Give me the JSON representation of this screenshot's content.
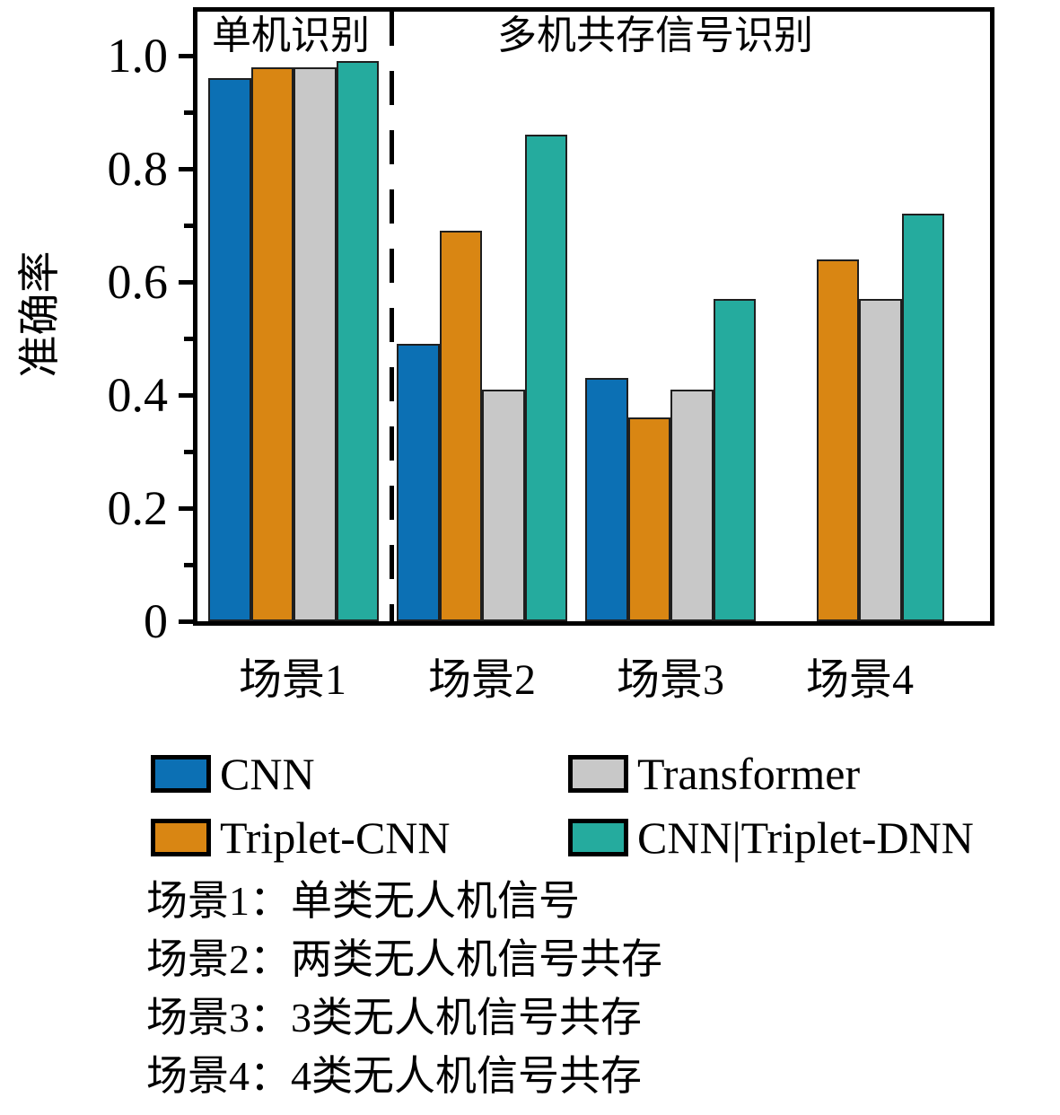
{
  "chart_data": {
    "type": "bar",
    "title": "",
    "xlabel": "",
    "ylabel": "准确率",
    "categories": [
      "场景1",
      "场景2",
      "场景3",
      "场景4"
    ],
    "series": [
      {
        "name": "CNN",
        "color": "#0c70b4",
        "values": [
          0.96,
          0.49,
          0.43,
          null
        ]
      },
      {
        "name": "Triplet-CNN",
        "color": "#d98613",
        "values": [
          0.98,
          0.69,
          0.36,
          0.64
        ]
      },
      {
        "name": "Transformer",
        "color": "#c8c8c8",
        "values": [
          0.98,
          0.41,
          0.41,
          0.57
        ]
      },
      {
        "name": "CNN|Triplet-DNN",
        "color": "#25ab9e",
        "values": [
          0.99,
          0.86,
          0.57,
          0.72
        ]
      }
    ],
    "ylim": [
      0,
      1.09
    ],
    "yticks_major": [
      0,
      0.2,
      0.4,
      0.6,
      0.8,
      1.0
    ],
    "ytick_labels": [
      "0",
      "0.2",
      "0.4",
      "0.6",
      "0.8",
      "1.0"
    ],
    "yticks_minor": [
      0.1,
      0.3,
      0.5,
      0.7,
      0.9
    ],
    "grid": "off",
    "legend_position": "below",
    "annotations": [
      {
        "text": "单机识别",
        "region": "left-of-dashed-divider"
      },
      {
        "text": "多机共存信号识别",
        "region": "right-of-dashed-divider"
      }
    ],
    "divider": {
      "style": "dashed",
      "between_categories": [
        "场景1",
        "场景2"
      ]
    }
  },
  "legend": {
    "items": [
      {
        "label": "CNN",
        "color": "#0c70b4"
      },
      {
        "label": "Transformer",
        "color": "#c8c8c8"
      },
      {
        "label": "Triplet-CNN",
        "color": "#d98613"
      },
      {
        "label": "CNN|Triplet-DNN",
        "color": "#25ab9e"
      }
    ]
  },
  "notes": [
    "场景1：单类无人机信号",
    "场景2：两类无人机信号共存",
    "场景3：3类无人机信号共存",
    "场景4：4类无人机信号共存"
  ],
  "colors": {
    "axis": "#000000",
    "bar_edge": "#1f1f1f",
    "background": "#ffffff"
  }
}
